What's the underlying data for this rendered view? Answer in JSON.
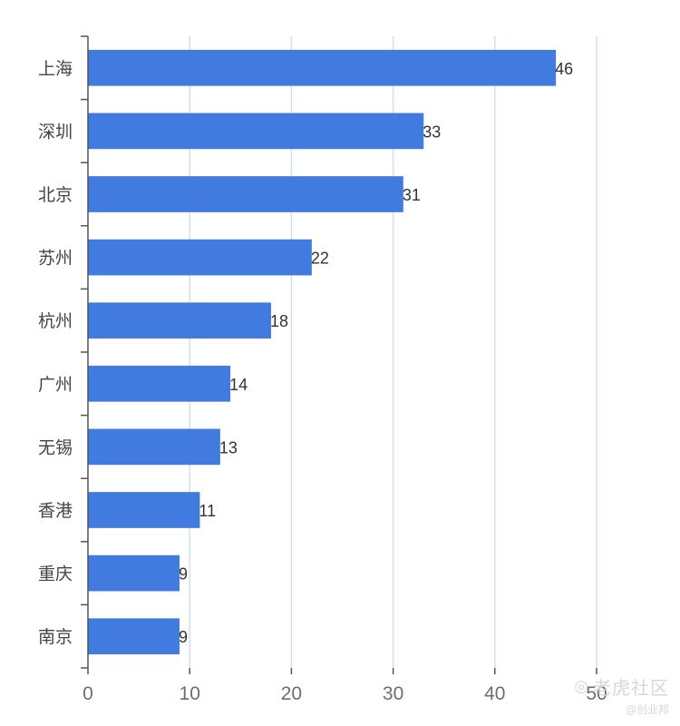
{
  "chart_data": {
    "type": "bar",
    "orientation": "horizontal",
    "categories": [
      "上海",
      "深圳",
      "北京",
      "苏州",
      "杭州",
      "广州",
      "无锡",
      "香港",
      "重庆",
      "南京"
    ],
    "values": [
      46,
      33,
      31,
      22,
      18,
      14,
      13,
      11,
      9,
      9
    ],
    "xlim": [
      0,
      50
    ],
    "xticks": [
      0,
      10,
      20,
      30,
      40,
      50
    ],
    "grid": true,
    "bar_color": "#417be0",
    "title": "",
    "xlabel": "",
    "ylabel": ""
  },
  "watermark": {
    "icon": "tiger-icon",
    "main": "老虎社区",
    "sub": "@创业邦"
  }
}
